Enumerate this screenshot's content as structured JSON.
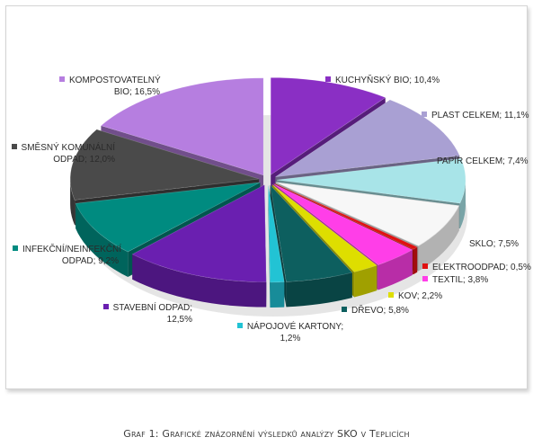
{
  "chart_data": {
    "type": "pie",
    "style": "3d-exploded",
    "slices": [
      {
        "label": "KUCHYŇSKÝ BIO",
        "text": "KUCHYŇSKÝ BIO; 10,4%",
        "value": 10.4,
        "color": "#8a2fc4"
      },
      {
        "label": "PLAST CELKEM",
        "text": "PLAST CELKEM; 11,1%",
        "value": 11.1,
        "color": "#a9a0d3"
      },
      {
        "label": "PAPÍR CELKEM",
        "text": "PAPÍR CELKEM; 7,4%",
        "value": 7.4,
        "color": "#a8e4e8"
      },
      {
        "label": "SKLO",
        "text": "SKLO; 7,5%",
        "value": 7.5,
        "color": "#f7f7f7"
      },
      {
        "label": "ELEKTROODPAD",
        "text": "ELEKTROODPAD; 0,5%",
        "value": 0.5,
        "color": "#e01010"
      },
      {
        "label": "TEXTIL",
        "text": "TEXTIL; 3,8%",
        "value": 3.8,
        "color": "#ff3ee8"
      },
      {
        "label": "KOV",
        "text": "KOV; 2,2%",
        "value": 2.2,
        "color": "#dede00"
      },
      {
        "label": "DŘEVO",
        "text": "DŘEVO; 5,8%",
        "value": 5.8,
        "color": "#0d5f5f"
      },
      {
        "label": "NÁPOJOVÉ KARTONY",
        "text": "NÁPOJOVÉ KARTONY; 1,2%",
        "value": 1.2,
        "color": "#22c3d4"
      },
      {
        "label": "STAVEBNÍ ODPAD",
        "text": "STAVEBNÍ ODPAD; 12,5%",
        "value": 12.5,
        "color": "#6a1fb0"
      },
      {
        "label": "INFEKČNÍ/NEINFEKČNÍ ODPAD",
        "text": "INFEKČNÍ/NEINFEKČNÍ ODPAD; 9,2%",
        "value": 9.2,
        "color": "#008b80"
      },
      {
        "label": "SMĚSNÝ KOMUNÁLNÍ ODPAD",
        "text": "SMĚSNÝ KOMUNÁLNÍ ODPAD; 12,0%",
        "value": 12.0,
        "color": "#4a4a4a"
      },
      {
        "label": "KOMPOSTOVATELNÝ BIO",
        "text": "KOMPOSTOVATELNÝ BIO; 16,5%",
        "value": 16.5,
        "color": "#b67ee0"
      }
    ]
  },
  "labels": {
    "kuchynsky": "KUCHYŇSKÝ BIO; 10,4%",
    "plast": "PLAST CELKEM; 11,1%",
    "papir": "PAPÍR CELKEM; 7,4%",
    "sklo": "SKLO; 7,5%",
    "elektro": "ELEKTROODPAD; 0,5%",
    "textil": "TEXTIL; 3,8%",
    "kov": "KOV; 2,2%",
    "drevo": "DŘEVO; 5,8%",
    "napojove_1": "NÁPOJOVÉ KARTONY;",
    "napojove_2": "1,2%",
    "stavebni_1": "STAVEBNÍ ODPAD;",
    "stavebni_2": "12,5%",
    "infekcni_1": "INFEKČNÍ/NEINFEKČNÍ",
    "infekcni_2": "ODPAD; 9,2%",
    "smesny_1": "SMĚSNÝ KOMUNÁLNÍ",
    "smesny_2": "ODPAD; 12,0%",
    "kompost_1": "KOMPOSTOVATELNÝ",
    "kompost_2": "BIO; 16,5%"
  },
  "caption": "Graf 1: Grafické znázornění výsledků analýzy SKO v Teplicích"
}
